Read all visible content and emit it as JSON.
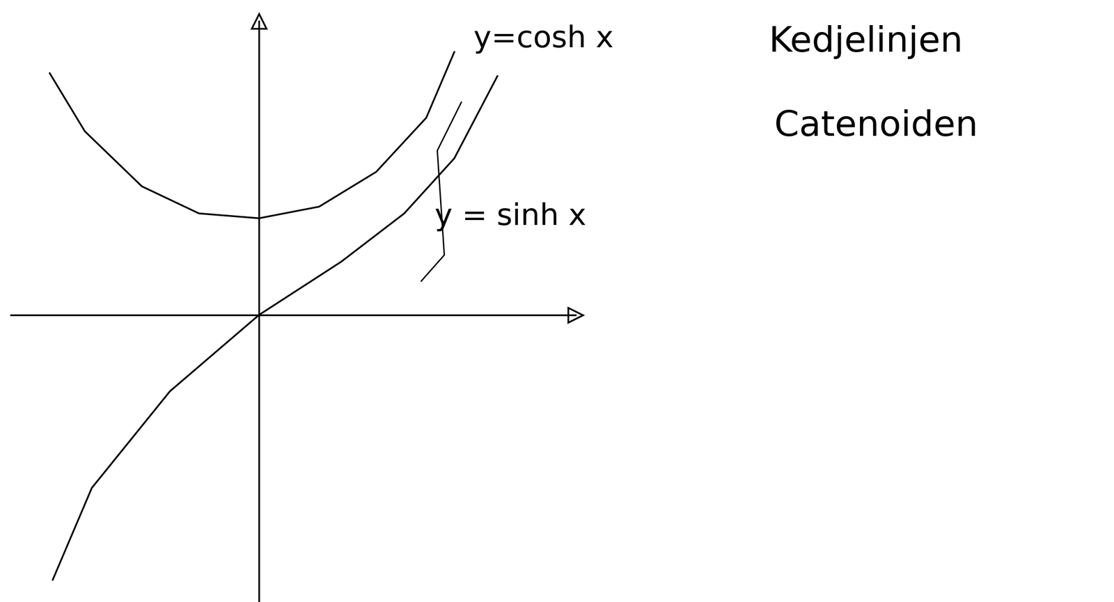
{
  "chart_data": {
    "type": "line",
    "xlim": [
      -2.48,
      3.16
    ],
    "ylim": [
      -2.97,
      3.04
    ],
    "xticks": [],
    "yticks": [],
    "tick_labels": false,
    "grid": false,
    "series": [
      {
        "name": "y=cosh x",
        "color": "#000000",
        "line_style": "solid",
        "x": [
          -2.09,
          -1.74,
          -1.17,
          -0.6,
          0.0,
          0.6,
          1.17,
          1.67,
          1.95
        ],
        "values": [
          2.5,
          1.9,
          1.33,
          1.05,
          1.0,
          1.12,
          1.48,
          2.04,
          2.72
        ]
      },
      {
        "name": "y = sinh x",
        "color": "#000000",
        "line_style": "solid",
        "x": [
          -2.06,
          -1.67,
          -0.89,
          0.0,
          0.82,
          1.45,
          1.95,
          2.38
        ],
        "values": [
          -2.74,
          -1.79,
          -0.79,
          0.0,
          0.55,
          1.05,
          1.62,
          2.47
        ]
      }
    ],
    "annotations": [
      "Kedjelinjen",
      "Catenoiden"
    ]
  }
}
